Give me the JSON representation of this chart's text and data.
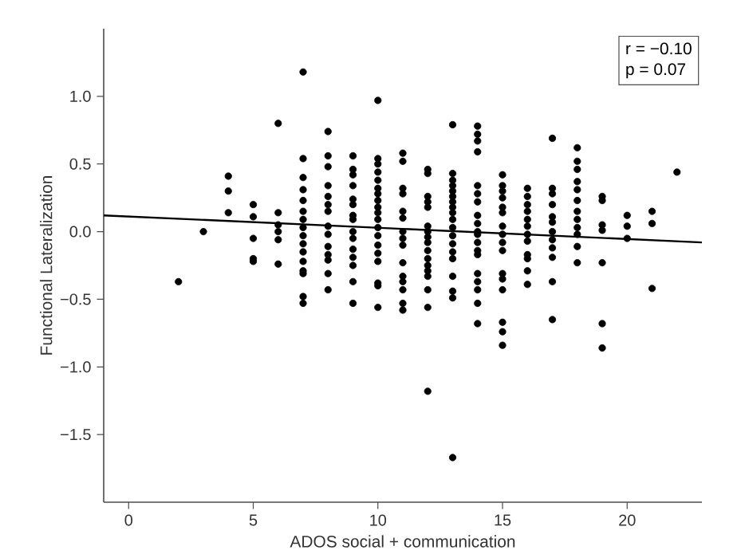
{
  "chart_data": {
    "type": "scatter",
    "xlabel": "ADOS social + communication",
    "ylabel": "Functional Lateralization",
    "xlim": [
      -1,
      23
    ],
    "ylim": [
      -2,
      1.5
    ],
    "xticks": [
      0,
      5,
      10,
      15,
      20
    ],
    "yticks": [
      {
        "value": -1.5,
        "label": "−1.5"
      },
      {
        "value": -1.0,
        "label": "−1.0"
      },
      {
        "value": -0.5,
        "label": "−0.5"
      },
      {
        "value": 0.0,
        "label": "0.0"
      },
      {
        "value": 0.5,
        "label": "0.5"
      },
      {
        "value": 1.0,
        "label": "1.0"
      }
    ],
    "grid": false,
    "annotations": [
      "r = −0.10",
      "p = 0.07"
    ],
    "series": [
      {
        "color": "#000000",
        "marker": "circle",
        "x": [
          2,
          3,
          4,
          4,
          4,
          5,
          5,
          5,
          5,
          5,
          6,
          6,
          6,
          6,
          6,
          6,
          7,
          7,
          7,
          7,
          7,
          7,
          7,
          7,
          7,
          7,
          7,
          7,
          7,
          7,
          7,
          7,
          8,
          8,
          8,
          8,
          8,
          8,
          8,
          8,
          8,
          8,
          8,
          8,
          8,
          8,
          9,
          9,
          9,
          9,
          9,
          9,
          9,
          9,
          9,
          9,
          9,
          9,
          9,
          9,
          9,
          10,
          10,
          10,
          10,
          10,
          10,
          10,
          10,
          10,
          10,
          10,
          10,
          10,
          10,
          10,
          10,
          10,
          10,
          10,
          11,
          11,
          11,
          11,
          11,
          11,
          11,
          11,
          11,
          11,
          11,
          11,
          11,
          11,
          11,
          12,
          12,
          12,
          12,
          12,
          12,
          12,
          12,
          12,
          12,
          12,
          12,
          12,
          12,
          12,
          12,
          12,
          13,
          13,
          13,
          13,
          13,
          13,
          13,
          13,
          13,
          13,
          13,
          13,
          13,
          13,
          13,
          13,
          13,
          13,
          13,
          14,
          14,
          14,
          14,
          14,
          14,
          14,
          14,
          14,
          14,
          14,
          14,
          14,
          14,
          14,
          14,
          14,
          14,
          14,
          15,
          15,
          15,
          15,
          15,
          15,
          15,
          15,
          15,
          15,
          15,
          15,
          15,
          15,
          15,
          15,
          16,
          16,
          16,
          16,
          16,
          16,
          16,
          16,
          16,
          16,
          16,
          16,
          17,
          17,
          17,
          17,
          17,
          17,
          17,
          17,
          17,
          17,
          17,
          17,
          18,
          18,
          18,
          18,
          18,
          18,
          18,
          18,
          18,
          18,
          18,
          18,
          19,
          19,
          19,
          19,
          19,
          19,
          19,
          20,
          20,
          20,
          21,
          21,
          21,
          22
        ],
        "values": [
          -0.37,
          0.0,
          0.41,
          0.3,
          0.14,
          0.2,
          0.11,
          -0.05,
          -0.2,
          -0.22,
          0.8,
          0.14,
          0.05,
          0.0,
          -0.06,
          -0.24,
          1.18,
          0.54,
          0.4,
          0.31,
          0.23,
          0.15,
          0.09,
          0.03,
          -0.03,
          -0.09,
          -0.15,
          -0.22,
          -0.29,
          -0.31,
          -0.48,
          -0.53,
          0.74,
          0.56,
          0.48,
          0.34,
          0.26,
          0.2,
          0.15,
          0.04,
          -0.02,
          -0.11,
          -0.17,
          -0.21,
          -0.31,
          -0.43,
          0.56,
          0.46,
          0.42,
          0.34,
          0.24,
          0.2,
          0.12,
          0.09,
          0.0,
          -0.05,
          -0.13,
          -0.19,
          -0.25,
          -0.37,
          -0.53,
          0.97,
          0.54,
          0.5,
          0.44,
          0.38,
          0.32,
          0.28,
          0.23,
          0.18,
          0.14,
          0.09,
          0.03,
          -0.03,
          -0.1,
          -0.16,
          -0.22,
          -0.38,
          -0.4,
          -0.56,
          0.58,
          0.52,
          0.32,
          0.28,
          0.15,
          0.1,
          0.0,
          -0.05,
          -0.1,
          -0.23,
          -0.33,
          -0.37,
          -0.43,
          -0.53,
          -0.58,
          0.46,
          0.43,
          0.26,
          0.22,
          0.18,
          0.04,
          0.0,
          -0.04,
          -0.08,
          -0.14,
          -0.2,
          -0.25,
          -0.29,
          -0.33,
          -0.43,
          -0.56,
          -1.18,
          0.79,
          0.43,
          0.38,
          0.34,
          0.3,
          0.26,
          0.22,
          0.18,
          0.14,
          0.09,
          0.03,
          -0.03,
          -0.09,
          -0.15,
          -0.2,
          -0.33,
          -0.44,
          -0.49,
          -1.67,
          0.78,
          0.72,
          0.67,
          0.59,
          0.34,
          0.28,
          0.22,
          0.12,
          0.06,
          0.0,
          -0.02,
          -0.08,
          -0.14,
          -0.17,
          -0.31,
          -0.37,
          -0.43,
          -0.53,
          -0.68,
          0.42,
          0.34,
          0.3,
          0.25,
          0.18,
          0.14,
          0.04,
          -0.02,
          -0.08,
          -0.14,
          -0.31,
          -0.35,
          -0.43,
          -0.67,
          -0.74,
          -0.84,
          0.32,
          0.26,
          0.2,
          0.15,
          0.09,
          0.04,
          -0.02,
          -0.07,
          -0.17,
          -0.2,
          -0.29,
          -0.39,
          0.69,
          0.32,
          0.28,
          0.2,
          0.11,
          0.07,
          0.0,
          -0.06,
          -0.12,
          -0.19,
          -0.37,
          -0.65,
          0.62,
          0.52,
          0.46,
          0.37,
          0.31,
          0.23,
          0.15,
          0.09,
          0.03,
          -0.02,
          -0.11,
          -0.23,
          0.26,
          0.23,
          0.05,
          0.01,
          -0.23,
          -0.68,
          -0.86,
          0.12,
          0.04,
          -0.05,
          0.15,
          0.06,
          -0.42,
          0.44
        ]
      },
      {
        "type": "line",
        "color": "#000000",
        "marker": "none",
        "line_style": "solid",
        "x": [
          -1,
          23
        ],
        "values": [
          0.12,
          -0.08
        ]
      }
    ]
  }
}
